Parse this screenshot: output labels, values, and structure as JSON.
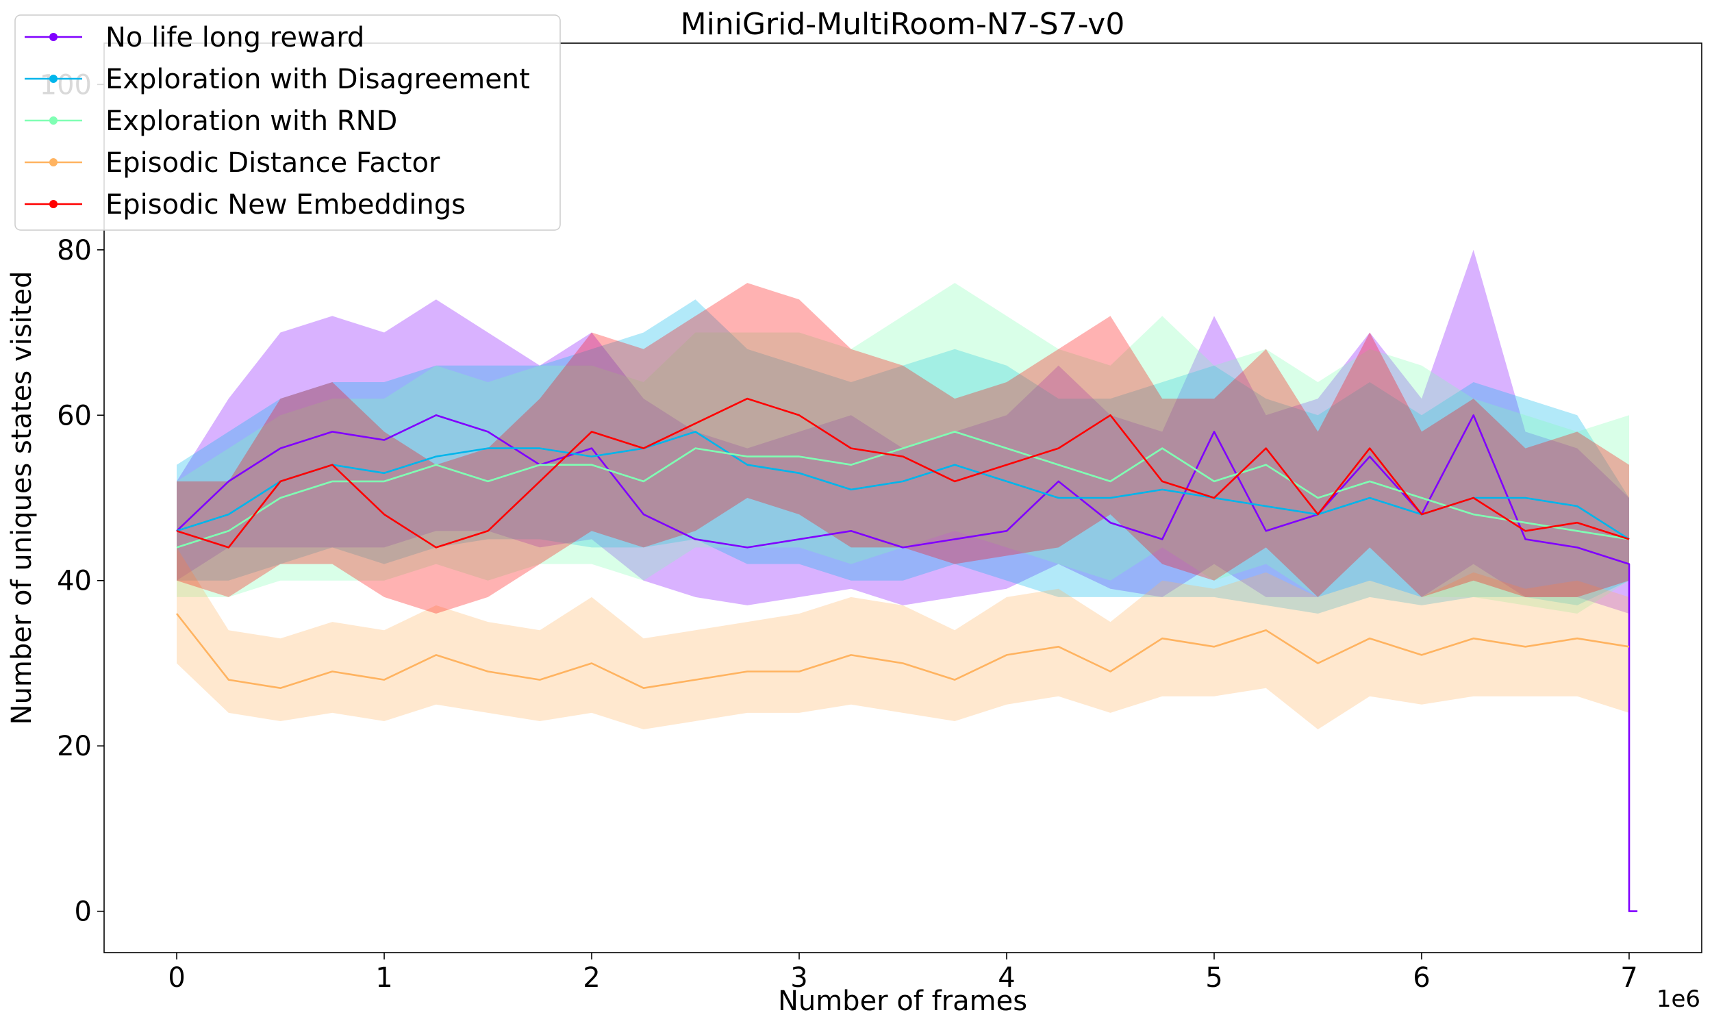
{
  "chart_data": {
    "type": "line",
    "title": "MiniGrid-MultiRoom-N7-S7-v0",
    "xlabel": "Number of frames",
    "ylabel": "Number of uniques states visited",
    "x_offset_label": "1e6",
    "xlim": [
      -0.35,
      7.35
    ],
    "ylim": [
      -5,
      105
    ],
    "x_ticks": [
      0,
      1,
      2,
      3,
      4,
      5,
      6,
      7
    ],
    "x_tick_labels": [
      "0",
      "1",
      "2",
      "3",
      "4",
      "5",
      "6",
      "7"
    ],
    "y_ticks": [
      0,
      20,
      40,
      60,
      80,
      100
    ],
    "y_tick_labels": [
      "0",
      "20",
      "40",
      "60",
      "80",
      "100"
    ],
    "grid": false,
    "legend_position": "top-left",
    "x": [
      0,
      0.25,
      0.5,
      0.75,
      1,
      1.25,
      1.5,
      1.75,
      2,
      2.25,
      2.5,
      2.75,
      3,
      3.25,
      3.5,
      3.75,
      4,
      4.25,
      4.5,
      4.75,
      5,
      5.25,
      5.5,
      5.75,
      6,
      6.25,
      6.5,
      6.75,
      7
    ],
    "series": [
      {
        "name": "No life long reward",
        "color": "#8000ff",
        "values": [
          46,
          52,
          56,
          58,
          57,
          60,
          58,
          54,
          56,
          48,
          45,
          44,
          45,
          46,
          44,
          45,
          46,
          52,
          47,
          45,
          58,
          46,
          48,
          55,
          48,
          60,
          45,
          44,
          42
        ],
        "lower": [
          40,
          44,
          44,
          44,
          44,
          46,
          46,
          44,
          45,
          40,
          38,
          37,
          38,
          39,
          37,
          38,
          39,
          42,
          39,
          38,
          42,
          38,
          38,
          40,
          38,
          42,
          38,
          38,
          36
        ],
        "upper": [
          52,
          62,
          70,
          72,
          70,
          74,
          70,
          66,
          70,
          62,
          58,
          56,
          58,
          60,
          56,
          58,
          60,
          66,
          60,
          58,
          72,
          60,
          62,
          70,
          62,
          80,
          58,
          56,
          50
        ],
        "tail_value": 0
      },
      {
        "name": "Exploration with Disagreement",
        "color": "#00b5eb",
        "values": [
          46,
          48,
          52,
          54,
          53,
          55,
          56,
          56,
          55,
          56,
          58,
          54,
          53,
          51,
          52,
          54,
          52,
          50,
          50,
          51,
          50,
          49,
          48,
          50,
          48,
          50,
          50,
          49,
          45
        ],
        "lower": [
          40,
          40,
          42,
          44,
          42,
          44,
          45,
          45,
          44,
          44,
          45,
          42,
          42,
          40,
          40,
          42,
          40,
          38,
          38,
          38,
          38,
          37,
          36,
          38,
          37,
          38,
          38,
          37,
          40
        ],
        "upper": [
          54,
          58,
          62,
          64,
          64,
          66,
          66,
          66,
          68,
          70,
          74,
          68,
          66,
          64,
          66,
          68,
          66,
          62,
          62,
          64,
          66,
          62,
          60,
          64,
          60,
          64,
          62,
          60,
          50
        ]
      },
      {
        "name": "Exploration with RND",
        "color": "#80ffb4",
        "values": [
          44,
          46,
          50,
          52,
          52,
          54,
          52,
          54,
          54,
          52,
          56,
          55,
          55,
          54,
          56,
          58,
          56,
          54,
          52,
          56,
          52,
          54,
          50,
          52,
          50,
          48,
          47,
          46,
          45
        ],
        "lower": [
          38,
          38,
          40,
          40,
          40,
          42,
          40,
          42,
          42,
          40,
          44,
          44,
          44,
          42,
          44,
          46,
          44,
          42,
          40,
          44,
          40,
          42,
          38,
          40,
          38,
          38,
          37,
          36,
          40
        ],
        "upper": [
          52,
          56,
          60,
          62,
          62,
          66,
          64,
          66,
          66,
          64,
          70,
          70,
          70,
          68,
          72,
          76,
          72,
          68,
          66,
          72,
          66,
          68,
          64,
          68,
          66,
          62,
          60,
          58,
          60
        ]
      },
      {
        "name": "Episodic Distance Factor",
        "color": "#ffb360",
        "values": [
          36,
          28,
          27,
          29,
          28,
          31,
          29,
          28,
          30,
          27,
          28,
          29,
          29,
          31,
          30,
          28,
          31,
          32,
          29,
          33,
          32,
          34,
          30,
          33,
          31,
          33,
          32,
          33,
          32
        ],
        "lower": [
          30,
          24,
          23,
          24,
          23,
          25,
          24,
          23,
          24,
          22,
          23,
          24,
          24,
          25,
          24,
          23,
          25,
          26,
          24,
          26,
          26,
          27,
          22,
          26,
          25,
          26,
          26,
          26,
          24
        ],
        "upper": [
          44,
          34,
          33,
          35,
          34,
          37,
          35,
          34,
          38,
          33,
          34,
          35,
          36,
          38,
          37,
          34,
          38,
          39,
          35,
          40,
          39,
          41,
          38,
          40,
          38,
          41,
          39,
          40,
          38
        ]
      },
      {
        "name": "Episodic New Embeddings",
        "color": "#ff0000",
        "values": [
          46,
          44,
          52,
          54,
          48,
          44,
          46,
          52,
          58,
          56,
          59,
          62,
          60,
          56,
          55,
          52,
          54,
          56,
          60,
          52,
          50,
          56,
          48,
          56,
          48,
          50,
          46,
          47,
          45
        ],
        "lower": [
          40,
          38,
          42,
          42,
          38,
          36,
          38,
          42,
          46,
          44,
          46,
          50,
          48,
          44,
          44,
          42,
          43,
          44,
          48,
          42,
          40,
          44,
          38,
          44,
          38,
          40,
          38,
          38,
          40
        ],
        "upper": [
          52,
          52,
          62,
          64,
          58,
          54,
          56,
          62,
          70,
          68,
          72,
          76,
          74,
          68,
          66,
          62,
          64,
          68,
          72,
          62,
          62,
          68,
          58,
          70,
          58,
          62,
          56,
          58,
          54
        ]
      }
    ]
  }
}
